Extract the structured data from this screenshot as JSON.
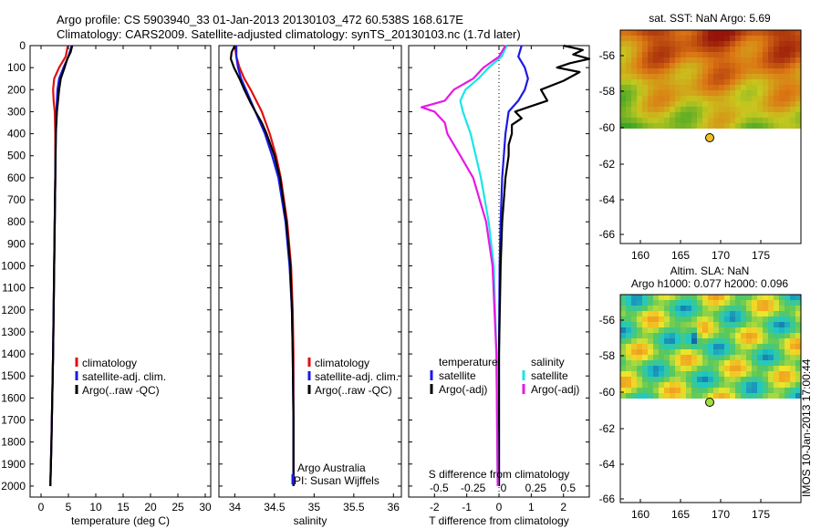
{
  "header": {
    "title_line1": "Argo profile: CS 5903940_33 01-Jan-2013 20130103_472 60.538S 168.617E",
    "title_line2": "Climatology: CARS2009. Satellite-adjusted climatology: synTS_20130103.nc (1.7d later)"
  },
  "colors": {
    "climatology": "#e01010",
    "satellite": "#1a1ae6",
    "argo": "#000000",
    "salinity_satellite": "#19e6e6",
    "salinity_argo": "#e619e6"
  },
  "legend_profile": {
    "climatology": "climatology",
    "satellite": "satellite-adj. clim.",
    "argo": "Argo(..raw -QC)"
  },
  "legend_diff": {
    "temperature_header": "temperature",
    "salinity_header": "salinity",
    "satellite": "satellite",
    "argo": "Argo(-adj)"
  },
  "credits": {
    "line1": "Argo Australia",
    "line2": "PI: Susan Wijffels"
  },
  "side_text": "IMOS 10-Jan-2013 17:00:44",
  "sst_map": {
    "title": "sat. SST: NaN Argo: 5.69",
    "xticks": [
      "160",
      "165",
      "170",
      "175"
    ],
    "yticks": [
      "-56",
      "-58",
      "-60",
      "-62",
      "-64",
      "-66"
    ],
    "marker_color": "#f0c020"
  },
  "sla_map": {
    "title_line1": "Altim. SLA: NaN",
    "title_line2": "Argo h1000: 0.077 h2000: 0.096",
    "xticks": [
      "160",
      "165",
      "170",
      "175"
    ],
    "yticks": [
      "-56",
      "-58",
      "-60",
      "-62",
      "-64",
      "-66"
    ],
    "marker_color": "#a0e040"
  },
  "chart_data": [
    {
      "type": "line",
      "xlabel": "temperature (deg C)",
      "ylabel": "",
      "xlim": [
        -2,
        31
      ],
      "ylim": [
        2050,
        0
      ],
      "xticks": [
        0,
        5,
        10,
        15,
        20,
        25,
        30
      ],
      "yticks": [
        0,
        100,
        200,
        300,
        400,
        500,
        600,
        700,
        800,
        900,
        1000,
        1100,
        1200,
        1300,
        1400,
        1500,
        1600,
        1700,
        1800,
        1900,
        2000
      ],
      "series": [
        {
          "name": "climatology",
          "depth": [
            0,
            50,
            100,
            150,
            200,
            250,
            300,
            400,
            600,
            800,
            1000,
            1400,
            1800,
            2000
          ],
          "values": [
            4.9,
            4.5,
            3.3,
            2.4,
            2.2,
            2.3,
            2.5,
            2.6,
            2.6,
            2.5,
            2.4,
            2.2,
            1.9,
            1.7
          ]
        },
        {
          "name": "satellite-adj. clim.",
          "depth": [
            0,
            50,
            100,
            150,
            200,
            250,
            300,
            400,
            600,
            800,
            1000,
            1400,
            1800,
            2000
          ],
          "values": [
            5.6,
            5.0,
            4.1,
            3.3,
            3.0,
            2.9,
            2.8,
            2.7,
            2.6,
            2.5,
            2.4,
            2.2,
            1.9,
            1.7
          ]
        },
        {
          "name": "Argo(..raw -QC)",
          "depth": [
            0,
            30,
            60,
            100,
            150,
            200,
            250,
            300,
            350,
            400,
            600,
            800,
            1000,
            1400,
            1800,
            2000
          ],
          "values": [
            5.7,
            5.4,
            4.8,
            4.3,
            3.6,
            3.3,
            3.1,
            2.9,
            2.8,
            2.7,
            2.6,
            2.5,
            2.4,
            2.2,
            1.9,
            1.7
          ]
        }
      ]
    },
    {
      "type": "line",
      "xlabel": "salinity",
      "ylabel": "",
      "xlim": [
        33.8,
        36.1
      ],
      "ylim": [
        2050,
        0
      ],
      "xticks": [
        34,
        34.5,
        35,
        35.5,
        36
      ],
      "series": [
        {
          "name": "climatology",
          "depth": [
            0,
            50,
            100,
            150,
            200,
            300,
            400,
            500,
            600,
            800,
            1000,
            1200,
            1400,
            1700,
            2000
          ],
          "values": [
            34.0,
            34.02,
            34.06,
            34.12,
            34.2,
            34.34,
            34.44,
            34.52,
            34.58,
            34.66,
            34.71,
            34.73,
            34.74,
            34.74,
            34.74
          ]
        },
        {
          "name": "satellite-adj. clim.",
          "depth": [
            0,
            50,
            100,
            150,
            200,
            300,
            400,
            500,
            600,
            800,
            1000,
            1200,
            1400,
            1700,
            2000
          ],
          "values": [
            34.02,
            34.02,
            34.04,
            34.08,
            34.14,
            34.26,
            34.38,
            34.47,
            34.55,
            34.64,
            34.69,
            34.72,
            34.73,
            34.74,
            34.74
          ]
        },
        {
          "name": "Argo(..raw -QC)",
          "depth": [
            0,
            30,
            60,
            100,
            150,
            200,
            260,
            300,
            350,
            400,
            500,
            600,
            800,
            1000,
            1200,
            1400,
            1700,
            2000
          ],
          "values": [
            34.0,
            33.96,
            33.95,
            33.99,
            34.06,
            34.12,
            34.2,
            34.26,
            34.34,
            34.4,
            34.5,
            34.57,
            34.65,
            34.7,
            34.72,
            34.73,
            34.74,
            34.74
          ]
        }
      ]
    },
    {
      "type": "line",
      "xlabel": "T difference from climatology",
      "xlabel_top": "S difference from climatology",
      "ylabel": "",
      "xlim": [
        -2.8,
        2.8
      ],
      "ylim": [
        2050,
        0
      ],
      "xticks": [
        -2,
        -1,
        0,
        1,
        2
      ],
      "xticks_top": [
        "-0.5",
        "-0.25",
        "0",
        "0.25",
        "0.5"
      ],
      "series": [
        {
          "name": "temperature satellite",
          "depth": [
            0,
            50,
            100,
            150,
            200,
            250,
            300,
            400,
            600,
            800,
            1000,
            1400,
            2000
          ],
          "values": [
            0.7,
            0.6,
            0.8,
            0.9,
            0.8,
            0.6,
            0.3,
            0.2,
            0.1,
            0.05,
            0.02,
            0.0,
            0.0
          ]
        },
        {
          "name": "temperature Argo(-adj)",
          "depth": [
            0,
            20,
            40,
            60,
            80,
            100,
            120,
            160,
            200,
            250,
            280,
            300,
            330,
            360,
            400,
            450,
            500,
            600,
            800,
            1000,
            1400,
            2000
          ],
          "values": [
            2.0,
            2.6,
            2.3,
            2.8,
            2.2,
            1.8,
            2.5,
            2.0,
            1.3,
            1.5,
            0.9,
            0.5,
            0.7,
            0.4,
            0.4,
            0.3,
            0.3,
            0.2,
            0.1,
            0.05,
            0.0,
            0.0
          ]
        },
        {
          "name": "salinity satellite",
          "depth": [
            0,
            50,
            100,
            150,
            200,
            250,
            300,
            400,
            600,
            800,
            1000,
            1400,
            2000
          ],
          "values": [
            0.06,
            0.02,
            -0.08,
            -0.16,
            -0.26,
            -0.3,
            -0.28,
            -0.22,
            -0.14,
            -0.08,
            -0.04,
            -0.02,
            -0.01
          ]
        },
        {
          "name": "salinity Argo(-adj)",
          "depth": [
            0,
            50,
            100,
            150,
            200,
            250,
            280,
            300,
            350,
            400,
            500,
            600,
            800,
            1000,
            1400,
            2000
          ],
          "values": [
            0.05,
            0.0,
            -0.12,
            -0.2,
            -0.35,
            -0.42,
            -0.6,
            -0.5,
            -0.42,
            -0.4,
            -0.3,
            -0.2,
            -0.1,
            -0.05,
            -0.02,
            -0.01
          ]
        }
      ]
    }
  ]
}
